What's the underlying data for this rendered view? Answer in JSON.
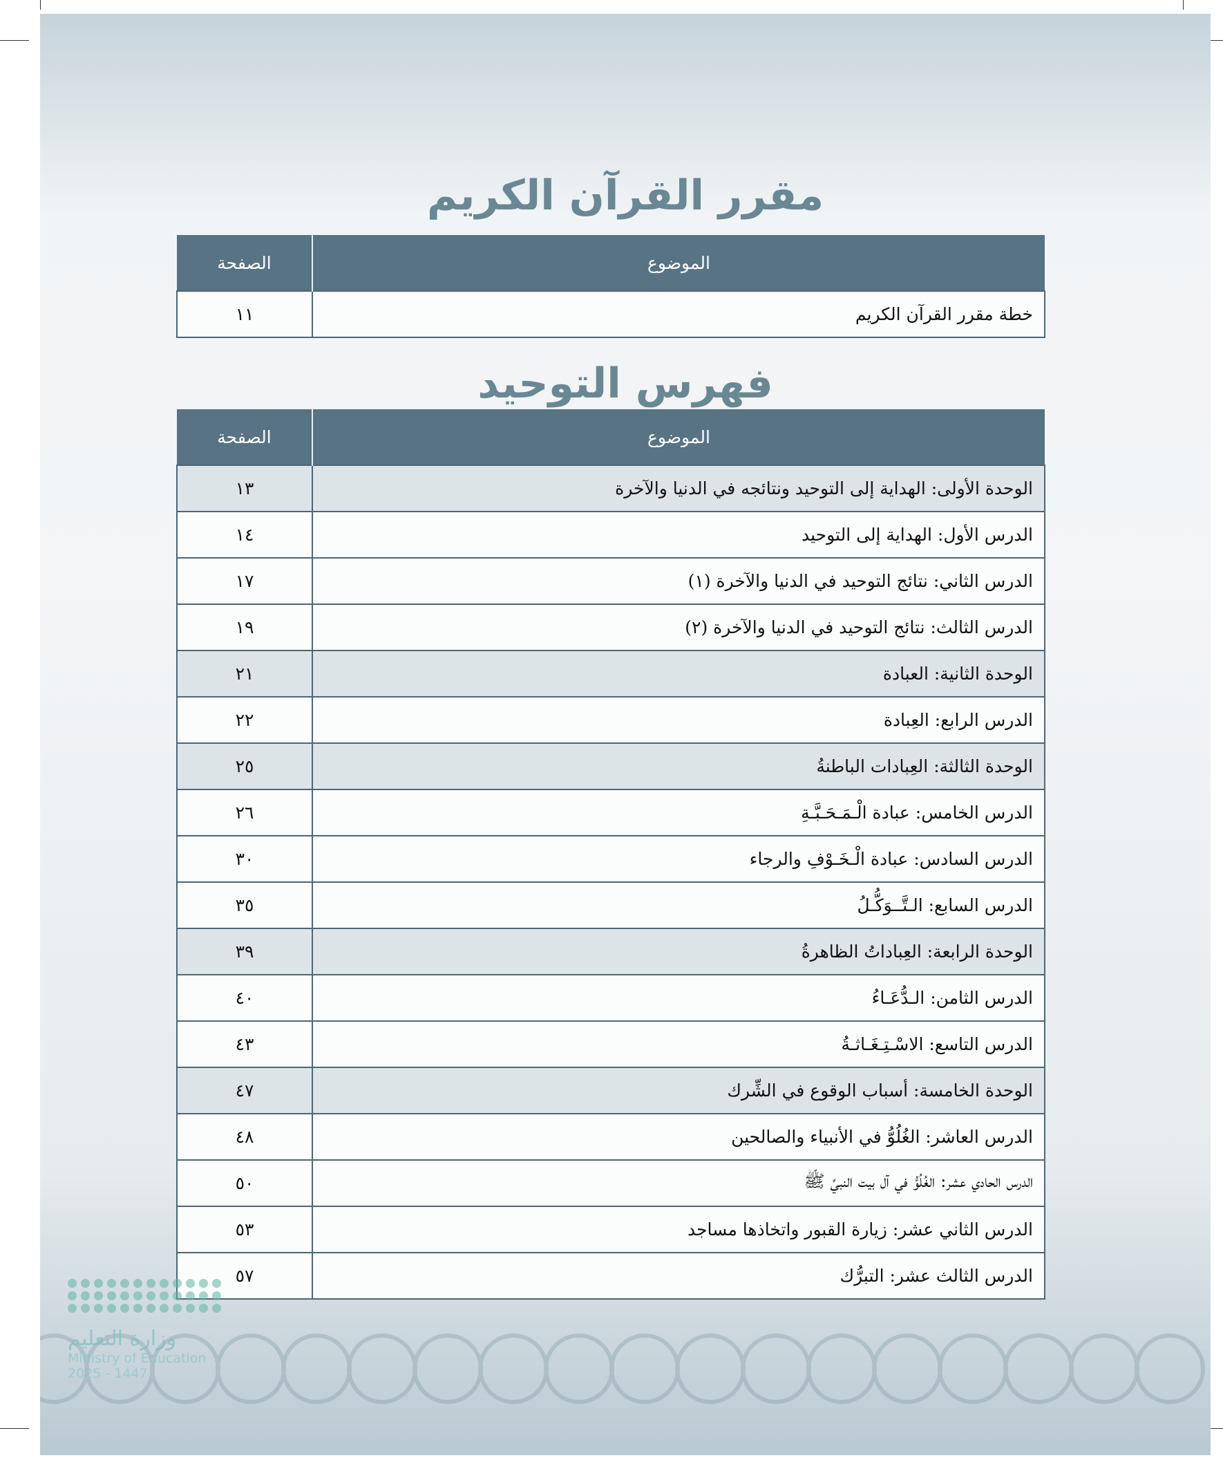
{
  "quran_section": {
    "title": "مقرر القرآن الكريم",
    "headers": {
      "topic": "الموضوع",
      "page": "الصفحة"
    },
    "rows": [
      {
        "topic": "خطة مقرر القرآن الكريم",
        "page": "١١",
        "unit": false
      }
    ]
  },
  "tawheed_section": {
    "title": "فهرس التوحيد",
    "headers": {
      "topic": "الموضوع",
      "page": "الصفحة"
    },
    "rows": [
      {
        "topic": "الوحدة الأولى: الهداية إلى التوحيد ونتائجه في الدنيا والآخرة",
        "page": "١٣",
        "unit": true
      },
      {
        "topic": "الدرس الأول: الهداية إلى التوحيد",
        "page": "١٤",
        "unit": false
      },
      {
        "topic": "الدرس الثاني: نتائج التوحيد في الدنيا والآخرة (١)",
        "page": "١٧",
        "unit": false
      },
      {
        "topic": "الدرس الثالث: نتائج التوحيد في الدنيا والآخرة (٢)",
        "page": "١٩",
        "unit": false
      },
      {
        "topic": "الوحدة الثانية:  العبادة",
        "page": "٢١",
        "unit": true
      },
      {
        "topic": "الدرس الرابع: العِبادة",
        "page": "٢٢",
        "unit": false
      },
      {
        "topic": "الوحدة الثالثة: العِبادات الباطنةُ",
        "page": "٢٥",
        "unit": true
      },
      {
        "topic": "الدرس الخامس: عبادة الْـمَـحَـبَّـةِ",
        "page": "٢٦",
        "unit": false
      },
      {
        "topic": "الدرس السادس: عبادة الْـخَـوْفِ والرجاء",
        "page": "٣٠",
        "unit": false
      },
      {
        "topic": "الدرس السابع: الـتَّــوَكُّـلُ",
        "page": "٣٥",
        "unit": false
      },
      {
        "topic": "الوحدة الرابعة: العِباداتُ الظاهرةُ",
        "page": "٣٩",
        "unit": true
      },
      {
        "topic": "الدرس الثامن: الـدُّعَـاءُ",
        "page": "٤٠",
        "unit": false
      },
      {
        "topic": "الدرس التاسع: الاسْـتِـغَـاثـةُ",
        "page": "٤٣",
        "unit": false
      },
      {
        "topic": "الوحدة الخامسة: أسباب الوقوع في الشِّرك",
        "page": "٤٧",
        "unit": true
      },
      {
        "topic": "الدرس العاشر: الغُلُوُّ في الأنبياء والصالحين",
        "page": "٤٨",
        "unit": false
      },
      {
        "topic": "الدرس الحادي عشر: الغُلُوُّ في آل بيت النبيِّ ﷺ",
        "page": "٥٠",
        "unit": false
      },
      {
        "topic": "الدرس الثاني عشر: زيارة القبور واتخاذها مساجد",
        "page": "٥٣",
        "unit": false
      },
      {
        "topic": "الدرس الثالث عشر: التبرُّك",
        "page": "٥٧",
        "unit": false
      }
    ]
  },
  "watermark": {
    "arabic": "وزارة التعليم",
    "english": "Ministry of Education",
    "year": "2025 - 1447"
  },
  "colors": {
    "header": "#577384",
    "unit_row": "#dde4e8",
    "title": "#6a8794"
  }
}
